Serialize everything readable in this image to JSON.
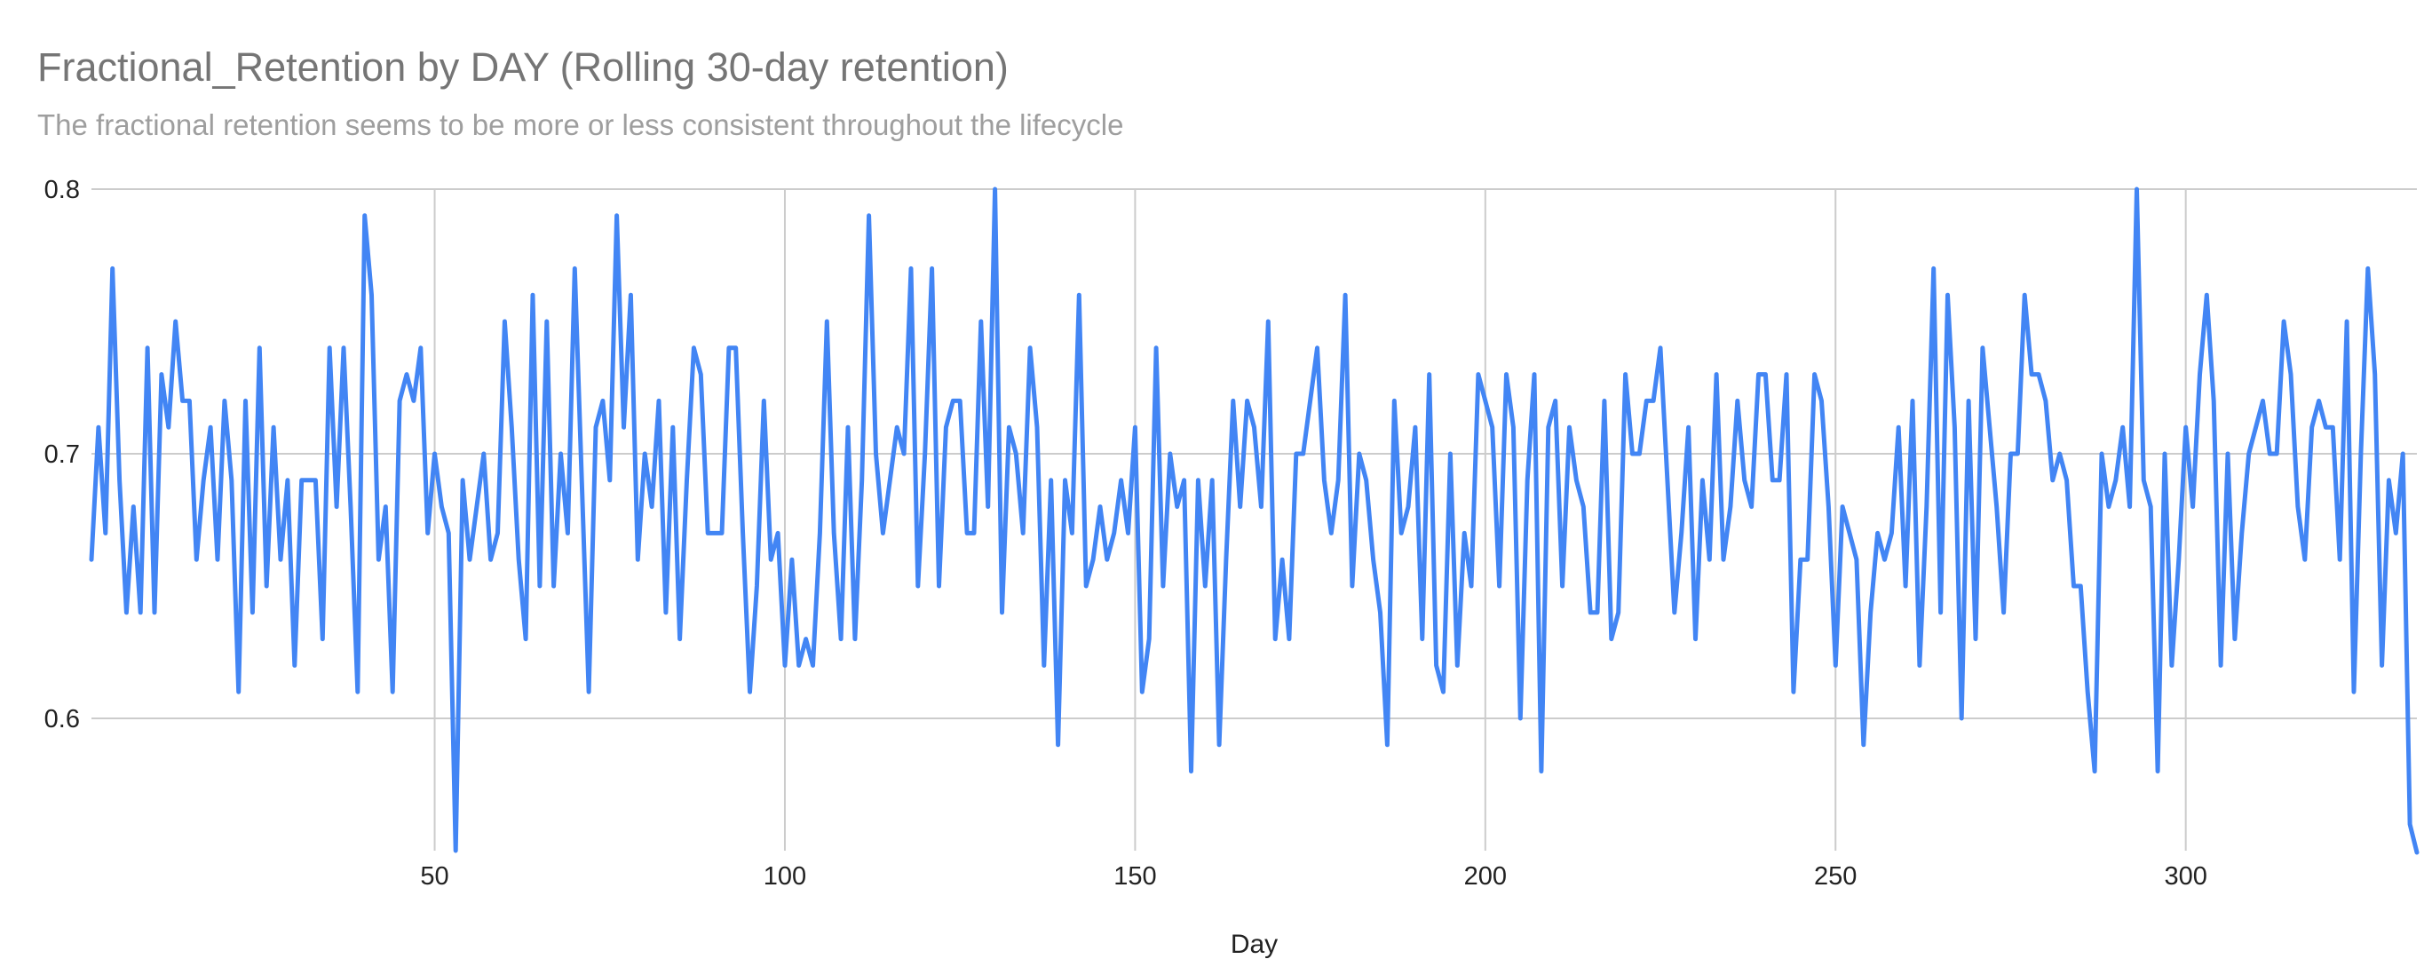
{
  "chart_data": {
    "type": "line",
    "title": "Fractional_Retention by DAY (Rolling 30-day retention)",
    "subtitle": "The fractional retention seems to be more or less consistent throughout the lifecycle",
    "xlabel": "Day",
    "ylabel": "",
    "xlim": [
      1,
      333
    ],
    "ylim": [
      0.55,
      0.8
    ],
    "x_ticks": [
      50,
      100,
      150,
      200,
      250,
      300
    ],
    "y_ticks": [
      0.6,
      0.7,
      0.8
    ],
    "grid": true,
    "legend": "none",
    "colors": {
      "line": "#4285f4",
      "grid": "#cccccc"
    },
    "series": [
      {
        "x_start": 1,
        "x_step": 1,
        "values": [
          0.66,
          0.71,
          0.67,
          0.77,
          0.69,
          0.64,
          0.68,
          0.64,
          0.74,
          0.64,
          0.73,
          0.71,
          0.75,
          0.72,
          0.72,
          0.66,
          0.69,
          0.71,
          0.66,
          0.72,
          0.69,
          0.61,
          0.72,
          0.64,
          0.74,
          0.65,
          0.71,
          0.66,
          0.69,
          0.62,
          0.69,
          0.69,
          0.69,
          0.63,
          0.74,
          0.68,
          0.74,
          0.68,
          0.61,
          0.79,
          0.76,
          0.66,
          0.68,
          0.61,
          0.72,
          0.73,
          0.72,
          0.74,
          0.67,
          0.7,
          0.68,
          0.67,
          0.55,
          0.69,
          0.66,
          0.68,
          0.7,
          0.66,
          0.67,
          0.75,
          0.71,
          0.66,
          0.63,
          0.76,
          0.65,
          0.75,
          0.65,
          0.7,
          0.67,
          0.77,
          0.69,
          0.61,
          0.71,
          0.72,
          0.69,
          0.79,
          0.71,
          0.76,
          0.66,
          0.7,
          0.68,
          0.72,
          0.64,
          0.71,
          0.63,
          0.69,
          0.74,
          0.73,
          0.67,
          0.67,
          0.67,
          0.74,
          0.74,
          0.67,
          0.61,
          0.65,
          0.72,
          0.66,
          0.67,
          0.62,
          0.66,
          0.62,
          0.63,
          0.62,
          0.67,
          0.75,
          0.67,
          0.63,
          0.71,
          0.63,
          0.69,
          0.79,
          0.7,
          0.67,
          0.69,
          0.71,
          0.7,
          0.77,
          0.65,
          0.7,
          0.77,
          0.65,
          0.71,
          0.72,
          0.72,
          0.67,
          0.67,
          0.75,
          0.68,
          0.8,
          0.64,
          0.71,
          0.7,
          0.67,
          0.74,
          0.71,
          0.62,
          0.69,
          0.59,
          0.69,
          0.67,
          0.76,
          0.65,
          0.66,
          0.68,
          0.66,
          0.67,
          0.69,
          0.67,
          0.71,
          0.61,
          0.63,
          0.74,
          0.65,
          0.7,
          0.68,
          0.69,
          0.58,
          0.69,
          0.65,
          0.69,
          0.59,
          0.66,
          0.72,
          0.68,
          0.72,
          0.71,
          0.68,
          0.75,
          0.63,
          0.66,
          0.63,
          0.7,
          0.7,
          0.72,
          0.74,
          0.69,
          0.67,
          0.69,
          0.76,
          0.65,
          0.7,
          0.69,
          0.66,
          0.64,
          0.59,
          0.72,
          0.67,
          0.68,
          0.71,
          0.63,
          0.73,
          0.62,
          0.61,
          0.7,
          0.62,
          0.67,
          0.65,
          0.73,
          0.72,
          0.71,
          0.65,
          0.73,
          0.71,
          0.6,
          0.69,
          0.73,
          0.58,
          0.71,
          0.72,
          0.65,
          0.71,
          0.69,
          0.68,
          0.64,
          0.64,
          0.72,
          0.63,
          0.64,
          0.73,
          0.7,
          0.7,
          0.72,
          0.72,
          0.74,
          0.69,
          0.64,
          0.67,
          0.71,
          0.63,
          0.69,
          0.66,
          0.73,
          0.66,
          0.68,
          0.72,
          0.69,
          0.68,
          0.73,
          0.73,
          0.69,
          0.69,
          0.73,
          0.61,
          0.66,
          0.66,
          0.73,
          0.72,
          0.68,
          0.62,
          0.68,
          0.67,
          0.66,
          0.59,
          0.64,
          0.67,
          0.66,
          0.67,
          0.71,
          0.65,
          0.72,
          0.62,
          0.68,
          0.77,
          0.64,
          0.76,
          0.71,
          0.6,
          0.72,
          0.63,
          0.74,
          0.71,
          0.68,
          0.64,
          0.7,
          0.7,
          0.76,
          0.73,
          0.73,
          0.72,
          0.69,
          0.7,
          0.69,
          0.65,
          0.65,
          0.61,
          0.58,
          0.7,
          0.68,
          0.69,
          0.71,
          0.68,
          0.8,
          0.69,
          0.68,
          0.58,
          0.7,
          0.62,
          0.66,
          0.71,
          0.68,
          0.73,
          0.76,
          0.72,
          0.62,
          0.7,
          0.63,
          0.67,
          0.7,
          0.71,
          0.72,
          0.7,
          0.7,
          0.75,
          0.73,
          0.68,
          0.66,
          0.71,
          0.72,
          0.71,
          0.71,
          0.66,
          0.75,
          0.61,
          0.7,
          0.77,
          0.73,
          0.62,
          0.69,
          0.67,
          0.7,
          0.56,
          0.54
        ]
      }
    ]
  }
}
